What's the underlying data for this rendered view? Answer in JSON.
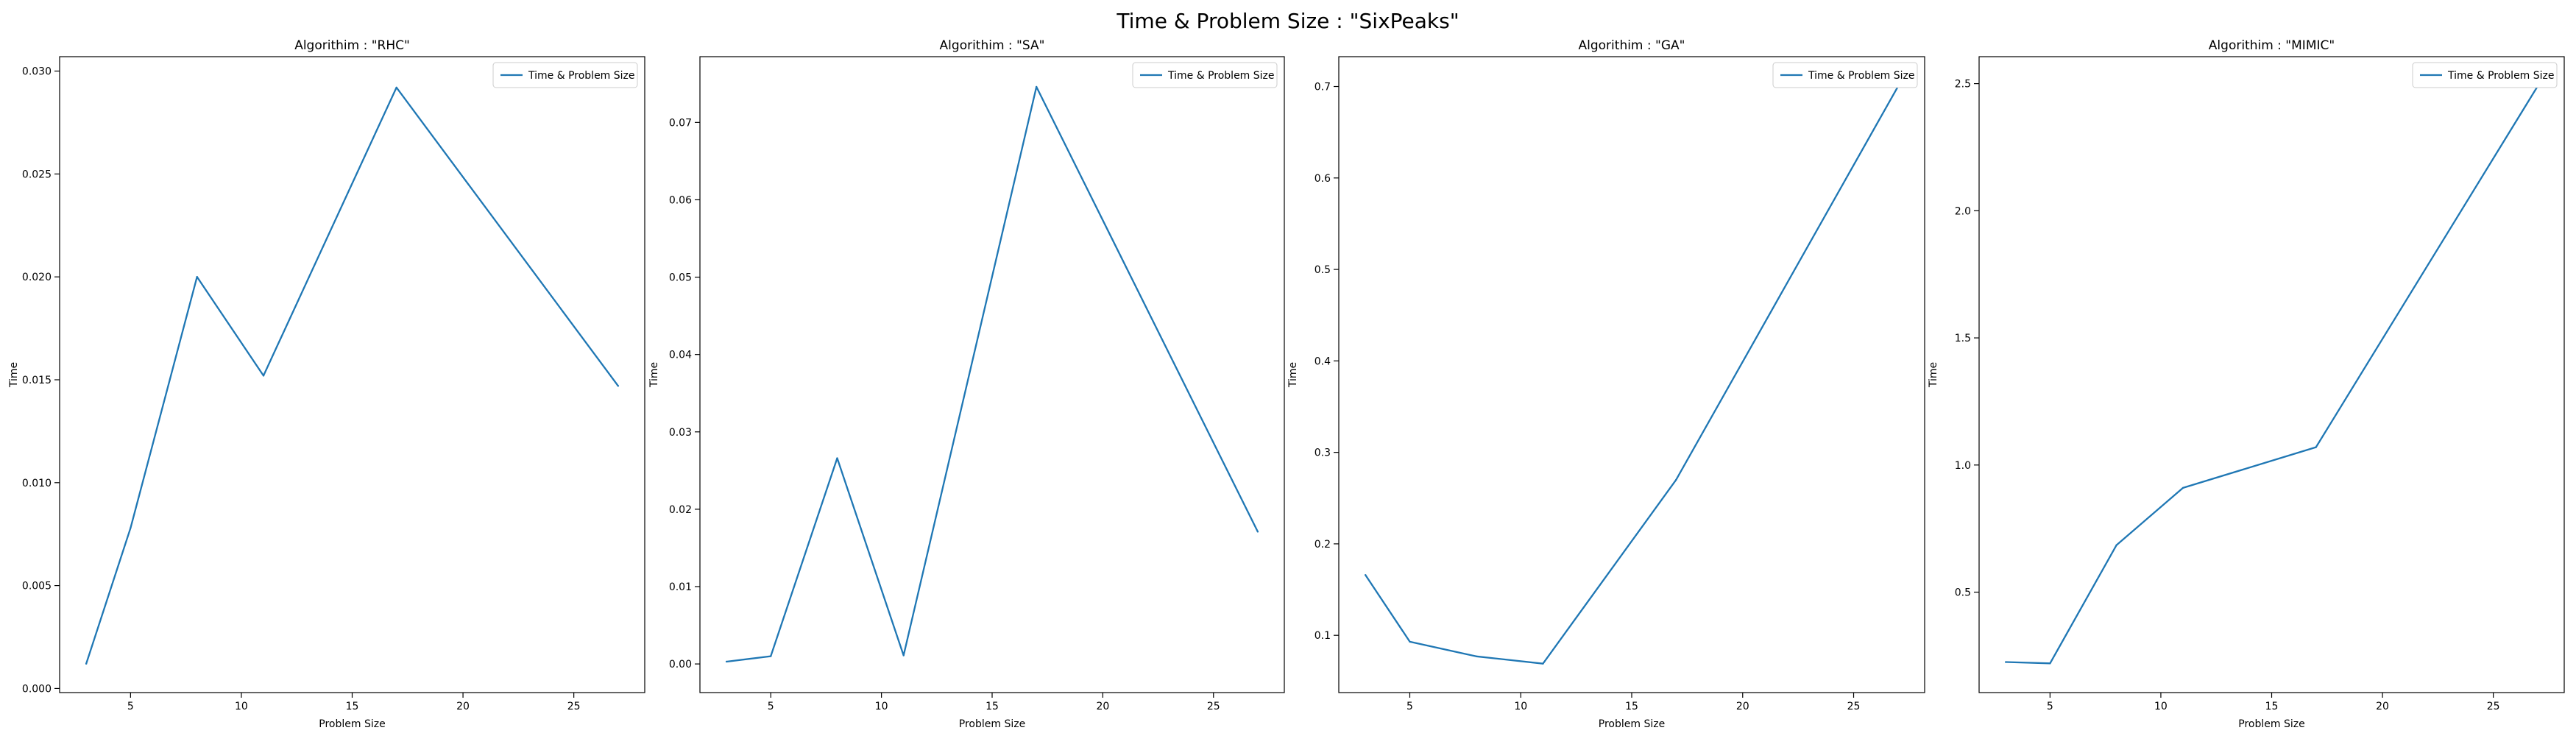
{
  "figure": {
    "title": "Time & Problem Size : \"SixPeaks\""
  },
  "colors": {
    "line": "#1f77b4",
    "axes": "#000000",
    "background": "#ffffff"
  },
  "chart_data": [
    {
      "type": "line",
      "title": "Algorithim : \"RHC\"",
      "xlabel": "Problem Size",
      "ylabel": "Time",
      "legend": "top-right",
      "grid": false,
      "xlim": [
        1.8,
        28.2
      ],
      "ylim": [
        -0.0002,
        0.0307
      ],
      "xticks": [
        5,
        10,
        15,
        20,
        25
      ],
      "yticks": [
        0.0,
        0.005,
        0.01,
        0.015,
        0.02,
        0.025,
        0.03
      ],
      "ytick_labels": [
        "0.000",
        "0.005",
        "0.010",
        "0.015",
        "0.020",
        "0.025",
        "0.030"
      ],
      "series": [
        {
          "name": "Time & Problem Size",
          "x": [
            3,
            5,
            8,
            11,
            17,
            27
          ],
          "y": [
            0.0012,
            0.0078,
            0.02,
            0.0152,
            0.0292,
            0.0147
          ]
        }
      ]
    },
    {
      "type": "line",
      "title": "Algorithim : \"SA\"",
      "xlabel": "Problem Size",
      "ylabel": "Time",
      "legend": "top-right",
      "grid": false,
      "xlim": [
        1.8,
        28.2
      ],
      "ylim": [
        -0.0037,
        0.0785
      ],
      "xticks": [
        5,
        10,
        15,
        20,
        25
      ],
      "yticks": [
        0.0,
        0.01,
        0.02,
        0.03,
        0.04,
        0.05,
        0.06,
        0.07
      ],
      "ytick_labels": [
        "0.00",
        "0.01",
        "0.02",
        "0.03",
        "0.04",
        "0.05",
        "0.06",
        "0.07"
      ],
      "series": [
        {
          "name": "Time & Problem Size",
          "x": [
            3,
            5,
            8,
            11,
            17,
            27
          ],
          "y": [
            0.0003,
            0.001,
            0.0266,
            0.0011,
            0.0746,
            0.0171
          ]
        }
      ]
    },
    {
      "type": "line",
      "title": "Algorithim : \"GA\"",
      "xlabel": "Problem Size",
      "ylabel": "Time",
      "legend": "top-right",
      "grid": false,
      "xlim": [
        1.8,
        28.2
      ],
      "ylim": [
        0.0374,
        0.7326
      ],
      "xticks": [
        5,
        10,
        15,
        20,
        25
      ],
      "yticks": [
        0.1,
        0.2,
        0.3,
        0.4,
        0.5,
        0.6,
        0.7
      ],
      "ytick_labels": [
        "0.1",
        "0.2",
        "0.3",
        "0.4",
        "0.5",
        "0.6",
        "0.7"
      ],
      "series": [
        {
          "name": "Time & Problem Size",
          "x": [
            3,
            5,
            8,
            11,
            17,
            27
          ],
          "y": [
            0.166,
            0.093,
            0.077,
            0.069,
            0.27,
            0.7
          ]
        }
      ]
    },
    {
      "type": "line",
      "title": "Algorithim : \"MIMIC\"",
      "xlabel": "Problem Size",
      "ylabel": "Time",
      "legend": "top-right",
      "grid": false,
      "xlim": [
        1.8,
        28.2
      ],
      "ylim": [
        0.105,
        2.606
      ],
      "xticks": [
        5,
        10,
        15,
        20,
        25
      ],
      "yticks": [
        0.5,
        1.0,
        1.5,
        2.0,
        2.5
      ],
      "ytick_labels": [
        "0.5",
        "1.0",
        "1.5",
        "2.0",
        "2.5"
      ],
      "series": [
        {
          "name": "Time & Problem Size",
          "x": [
            3,
            5,
            8,
            11,
            17,
            27
          ],
          "y": [
            0.225,
            0.22,
            0.685,
            0.91,
            1.07,
            2.49
          ]
        }
      ]
    }
  ]
}
